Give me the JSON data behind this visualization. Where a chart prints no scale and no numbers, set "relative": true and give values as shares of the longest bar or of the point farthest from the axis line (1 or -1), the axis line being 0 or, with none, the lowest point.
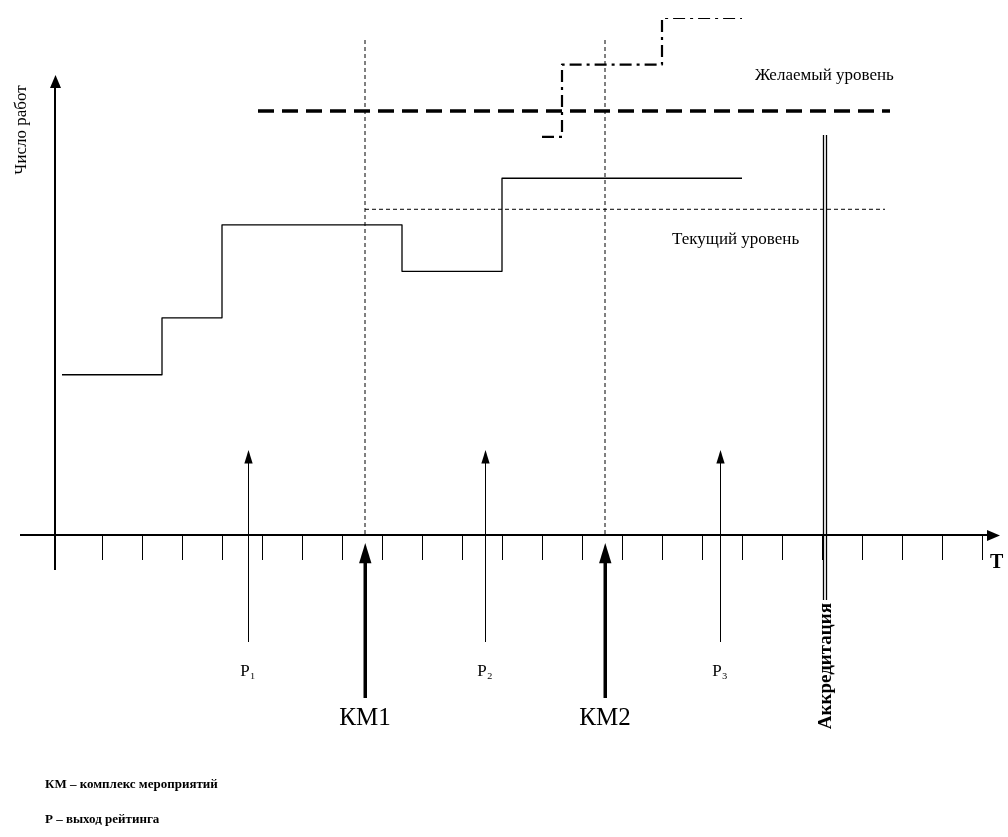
{
  "chart_data": {
    "type": "step",
    "relative": true,
    "xlabel": "Т",
    "ylabel": "Число работ",
    "tick_labels": false,
    "grid": false,
    "legend": false,
    "marker": "none",
    "line_style": "solid",
    "categories": [
      null,
      null,
      null,
      null,
      null,
      null,
      null,
      null,
      null,
      null,
      null,
      null,
      null,
      null,
      null,
      null,
      null,
      null,
      null,
      null,
      null,
      null,
      null,
      null,
      null,
      null,
      null,
      null,
      null,
      null,
      null,
      null,
      null,
      null,
      null,
      null,
      null,
      null,
      null,
      null,
      null,
      null,
      null,
      null,
      null,
      null,
      null
    ],
    "series": [
      {
        "color": "#000000",
        "values": [
          0.31,
          0.31,
          0.31,
          0.31,
          0.31,
          0.31,
          0.42,
          0.42,
          0.42,
          0.6,
          0.6,
          0.6,
          0.6,
          0.6,
          0.6,
          0.6,
          0.6,
          0.6,
          0.51,
          0.51,
          0.51,
          0.51,
          0.51,
          0.69,
          0.69,
          0.69,
          0.69,
          0.69,
          0.69,
          0.69,
          0.69,
          0.69,
          0.69,
          0.69,
          0.69,
          null,
          null,
          null,
          null,
          null,
          null,
          null,
          null,
          null,
          null,
          null,
          null
        ]
      },
      {
        "color": "#000000",
        "line_style": "dashed",
        "values": [
          null,
          null,
          null,
          null,
          null,
          null,
          null,
          null,
          null,
          null,
          null,
          null,
          null,
          null,
          null,
          null,
          null,
          null,
          null,
          null,
          null,
          null,
          null,
          null,
          0.77,
          0.77,
          0.91,
          0.91,
          0.91,
          0.91,
          0.91,
          1,
          1,
          1,
          1,
          null,
          null,
          null,
          null,
          null,
          null,
          null,
          null,
          null,
          null,
          null,
          null
        ]
      }
    ],
    "ref_lines": [
      {
        "axis": "y",
        "value": 0.82,
        "label": "Желаемый уровень",
        "line_style": "dashed",
        "color": "#000000"
      },
      {
        "axis": "y",
        "value": 0.63,
        "label": "Текущий уровень",
        "line_style": "dotted",
        "color": "#000000"
      }
    ],
    "annotations": [
      "P₁",
      "P₂",
      "P₃",
      "КМ1",
      "КМ2",
      "Аккредитация",
      "КМ – комплекс мероприятий",
      "Р – выход рейтинга"
    ]
  }
}
